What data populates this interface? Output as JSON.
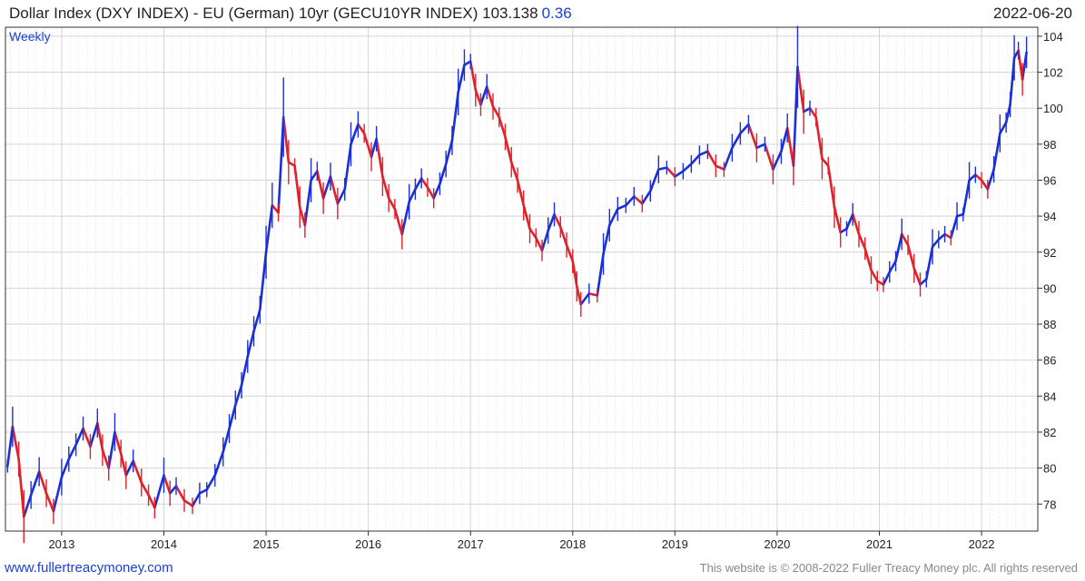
{
  "header": {
    "title": "Dollar Index (DXY INDEX) - EU (German) 10yr (GECU10YR INDEX) 103.138",
    "change": "0.36",
    "date": "2022-06-20"
  },
  "footer": {
    "link": "www.fullertreacymoney.com",
    "copyright": "This website is © 2008-2022 Fuller Treacy Money plc. All rights reserved"
  },
  "colors": {
    "up": "#1a2fd6",
    "down": "#e0202a",
    "grid": "#d4d4d4",
    "axis": "#333333"
  },
  "chart_data": {
    "type": "line",
    "frequency_label": "Weekly",
    "x_ticks": [
      "2013",
      "2014",
      "2015",
      "2016",
      "2017",
      "2018",
      "2019",
      "2020",
      "2021",
      "2022"
    ],
    "y_ticks": [
      78,
      80,
      82,
      84,
      86,
      88,
      90,
      92,
      94,
      96,
      98,
      100,
      102,
      104
    ],
    "ylim": [
      76.5,
      104.5
    ],
    "xlim": [
      2012.45,
      2022.55
    ],
    "y_axis_side": "right",
    "grid": true,
    "series": [
      {
        "points": [
          [
            2012.47,
            80.1
          ],
          [
            2012.52,
            82.3
          ],
          [
            2012.58,
            80.5
          ],
          [
            2012.63,
            77.3
          ],
          [
            2012.7,
            78.5
          ],
          [
            2012.78,
            79.8
          ],
          [
            2012.85,
            78.6
          ],
          [
            2012.92,
            77.6
          ],
          [
            2013.0,
            79.5
          ],
          [
            2013.07,
            80.5
          ],
          [
            2013.14,
            81.3
          ],
          [
            2013.21,
            82.2
          ],
          [
            2013.28,
            81.2
          ],
          [
            2013.35,
            82.5
          ],
          [
            2013.4,
            81.0
          ],
          [
            2013.46,
            80.0
          ],
          [
            2013.52,
            82.0
          ],
          [
            2013.58,
            80.8
          ],
          [
            2013.63,
            79.6
          ],
          [
            2013.7,
            80.4
          ],
          [
            2013.78,
            79.2
          ],
          [
            2013.85,
            78.5
          ],
          [
            2013.91,
            77.8
          ],
          [
            2014.0,
            79.6
          ],
          [
            2014.06,
            78.6
          ],
          [
            2014.12,
            79.0
          ],
          [
            2014.2,
            78.2
          ],
          [
            2014.28,
            77.9
          ],
          [
            2014.35,
            78.6
          ],
          [
            2014.42,
            78.8
          ],
          [
            2014.5,
            79.6
          ],
          [
            2014.58,
            80.9
          ],
          [
            2014.64,
            82.2
          ],
          [
            2014.7,
            83.5
          ],
          [
            2014.76,
            84.6
          ],
          [
            2014.82,
            86.2
          ],
          [
            2014.88,
            87.6
          ],
          [
            2014.94,
            88.8
          ],
          [
            2015.0,
            92.0
          ],
          [
            2015.06,
            94.6
          ],
          [
            2015.12,
            94.2
          ],
          [
            2015.17,
            99.5
          ],
          [
            2015.22,
            97.0
          ],
          [
            2015.28,
            96.8
          ],
          [
            2015.33,
            94.5
          ],
          [
            2015.38,
            93.5
          ],
          [
            2015.44,
            96.0
          ],
          [
            2015.5,
            96.5
          ],
          [
            2015.56,
            95.0
          ],
          [
            2015.63,
            96.2
          ],
          [
            2015.7,
            94.7
          ],
          [
            2015.77,
            95.5
          ],
          [
            2015.83,
            98.0
          ],
          [
            2015.9,
            99.1
          ],
          [
            2015.96,
            98.6
          ],
          [
            2016.03,
            97.3
          ],
          [
            2016.08,
            98.3
          ],
          [
            2016.14,
            96.2
          ],
          [
            2016.2,
            95.0
          ],
          [
            2016.26,
            94.4
          ],
          [
            2016.33,
            93.0
          ],
          [
            2016.4,
            94.8
          ],
          [
            2016.46,
            95.5
          ],
          [
            2016.52,
            96.1
          ],
          [
            2016.58,
            95.6
          ],
          [
            2016.64,
            95.0
          ],
          [
            2016.7,
            95.8
          ],
          [
            2016.76,
            96.9
          ],
          [
            2016.82,
            98.2
          ],
          [
            2016.88,
            100.9
          ],
          [
            2016.94,
            102.4
          ],
          [
            2017.0,
            102.6
          ],
          [
            2017.05,
            101.0
          ],
          [
            2017.1,
            100.2
          ],
          [
            2017.16,
            101.2
          ],
          [
            2017.22,
            100.1
          ],
          [
            2017.28,
            99.5
          ],
          [
            2017.34,
            98.4
          ],
          [
            2017.4,
            97.0
          ],
          [
            2017.46,
            96.0
          ],
          [
            2017.52,
            94.6
          ],
          [
            2017.58,
            93.3
          ],
          [
            2017.64,
            92.8
          ],
          [
            2017.7,
            92.1
          ],
          [
            2017.76,
            93.2
          ],
          [
            2017.82,
            94.1
          ],
          [
            2017.88,
            93.4
          ],
          [
            2017.94,
            92.4
          ],
          [
            2018.0,
            91.5
          ],
          [
            2018.04,
            90.1
          ],
          [
            2018.08,
            89.1
          ],
          [
            2018.16,
            89.7
          ],
          [
            2018.24,
            89.6
          ],
          [
            2018.3,
            91.9
          ],
          [
            2018.36,
            93.5
          ],
          [
            2018.44,
            94.4
          ],
          [
            2018.52,
            94.6
          ],
          [
            2018.6,
            95.1
          ],
          [
            2018.68,
            94.7
          ],
          [
            2018.76,
            95.4
          ],
          [
            2018.84,
            96.6
          ],
          [
            2018.92,
            96.7
          ],
          [
            2019.0,
            96.2
          ],
          [
            2019.08,
            96.5
          ],
          [
            2019.16,
            96.9
          ],
          [
            2019.24,
            97.4
          ],
          [
            2019.32,
            97.6
          ],
          [
            2019.4,
            96.8
          ],
          [
            2019.48,
            96.6
          ],
          [
            2019.56,
            97.8
          ],
          [
            2019.64,
            98.6
          ],
          [
            2019.72,
            99.1
          ],
          [
            2019.8,
            97.8
          ],
          [
            2019.88,
            98.0
          ],
          [
            2019.96,
            96.6
          ],
          [
            2020.04,
            97.6
          ],
          [
            2020.1,
            98.9
          ],
          [
            2020.16,
            96.8
          ],
          [
            2020.2,
            102.3
          ],
          [
            2020.26,
            99.8
          ],
          [
            2020.32,
            100.0
          ],
          [
            2020.38,
            99.5
          ],
          [
            2020.44,
            97.2
          ],
          [
            2020.5,
            96.8
          ],
          [
            2020.56,
            94.5
          ],
          [
            2020.62,
            93.1
          ],
          [
            2020.68,
            93.3
          ],
          [
            2020.74,
            94.1
          ],
          [
            2020.8,
            93.0
          ],
          [
            2020.86,
            92.2
          ],
          [
            2020.92,
            91.0
          ],
          [
            2020.98,
            90.4
          ],
          [
            2021.04,
            90.2
          ],
          [
            2021.1,
            90.9
          ],
          [
            2021.16,
            91.5
          ],
          [
            2021.22,
            93.0
          ],
          [
            2021.28,
            92.4
          ],
          [
            2021.34,
            91.1
          ],
          [
            2021.4,
            90.2
          ],
          [
            2021.46,
            90.5
          ],
          [
            2021.52,
            92.3
          ],
          [
            2021.58,
            92.7
          ],
          [
            2021.64,
            93.0
          ],
          [
            2021.7,
            92.8
          ],
          [
            2021.76,
            94.0
          ],
          [
            2021.82,
            94.1
          ],
          [
            2021.88,
            96.0
          ],
          [
            2021.94,
            96.3
          ],
          [
            2022.0,
            96.0
          ],
          [
            2022.06,
            95.5
          ],
          [
            2022.12,
            96.6
          ],
          [
            2022.18,
            98.6
          ],
          [
            2022.24,
            99.2
          ],
          [
            2022.28,
            100.2
          ],
          [
            2022.32,
            102.8
          ],
          [
            2022.36,
            103.2
          ],
          [
            2022.4,
            101.6
          ],
          [
            2022.44,
            103.1
          ]
        ]
      }
    ]
  }
}
